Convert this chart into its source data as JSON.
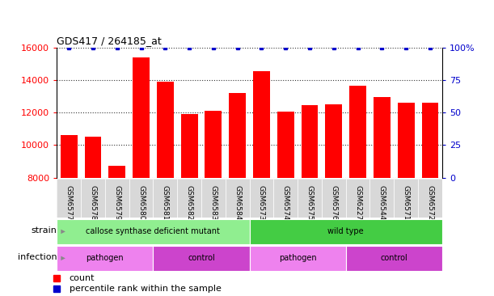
{
  "title": "GDS417 / 264185_at",
  "samples": [
    "GSM6577",
    "GSM6578",
    "GSM6579",
    "GSM6580",
    "GSM6581",
    "GSM6582",
    "GSM6583",
    "GSM6584",
    "GSM6573",
    "GSM6574",
    "GSM6575",
    "GSM6576",
    "GSM6227",
    "GSM6544",
    "GSM6571",
    "GSM6572"
  ],
  "counts": [
    10600,
    10500,
    8750,
    15400,
    13900,
    11900,
    12100,
    13200,
    14550,
    12050,
    12450,
    12500,
    13650,
    12950,
    12600,
    12600
  ],
  "percentiles": [
    100,
    100,
    100,
    100,
    100,
    100,
    100,
    100,
    100,
    100,
    100,
    100,
    100,
    100,
    100,
    100
  ],
  "bar_color": "#ff0000",
  "dot_color": "#0000cc",
  "ylim_left": [
    8000,
    16000
  ],
  "ylim_right": [
    0,
    100
  ],
  "yticks_left": [
    8000,
    10000,
    12000,
    14000,
    16000
  ],
  "yticks_right": [
    0,
    25,
    50,
    75,
    100
  ],
  "ytick_labels_right": [
    "0",
    "25",
    "50",
    "75",
    "100%"
  ],
  "strain_row": [
    {
      "label": "callose synthase deficient mutant",
      "start": 0,
      "end": 8,
      "color": "#90EE90"
    },
    {
      "label": "wild type",
      "start": 8,
      "end": 16,
      "color": "#44CC44"
    }
  ],
  "infection_row": [
    {
      "label": "pathogen",
      "start": 0,
      "end": 4,
      "color": "#EE82EE"
    },
    {
      "label": "control",
      "start": 4,
      "end": 8,
      "color": "#CC44CC"
    },
    {
      "label": "pathogen",
      "start": 8,
      "end": 12,
      "color": "#EE82EE"
    },
    {
      "label": "control",
      "start": 12,
      "end": 16,
      "color": "#CC44CC"
    }
  ],
  "strain_label": "strain",
  "infection_label": "infection",
  "legend_count": "count",
  "legend_percentile": "percentile rank within the sample",
  "tick_label_color_left": "#ff0000",
  "tick_label_color_right": "#0000cc",
  "xtick_bg": "#cccccc",
  "bar_width": 0.7
}
